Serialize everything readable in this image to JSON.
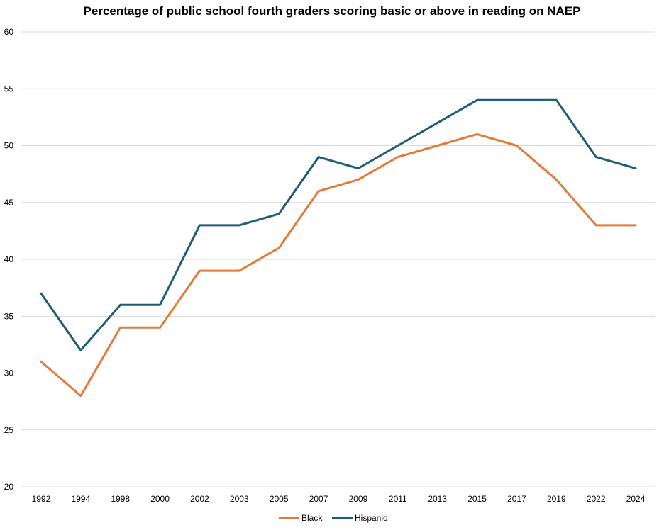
{
  "chart_data": {
    "type": "line",
    "title": "Percentage of public school fourth graders scoring  basic or above in reading on NAEP",
    "xlabel": "",
    "ylabel": "",
    "categories": [
      "1992",
      "1994",
      "1998",
      "2000",
      "2002",
      "2003",
      "2005",
      "2007",
      "2009",
      "2011",
      "2013",
      "2015",
      "2017",
      "2019",
      "2022",
      "2024"
    ],
    "ylim": [
      20,
      60
    ],
    "yticks": [
      "20",
      "25",
      "30",
      "35",
      "40",
      "45",
      "50",
      "55",
      "60"
    ],
    "grid": true,
    "legend_position": "bottom",
    "series": [
      {
        "name": "Black",
        "color": "#E07B39",
        "values": [
          31,
          28,
          34,
          34,
          39,
          39,
          41,
          46,
          47,
          49,
          50,
          51,
          50,
          47,
          43,
          43
        ]
      },
      {
        "name": "Hispanic",
        "color": "#1F5C7A",
        "values": [
          37,
          32,
          36,
          36,
          43,
          43,
          44,
          49,
          48,
          50,
          52,
          54,
          54,
          54,
          49,
          48
        ]
      }
    ]
  }
}
